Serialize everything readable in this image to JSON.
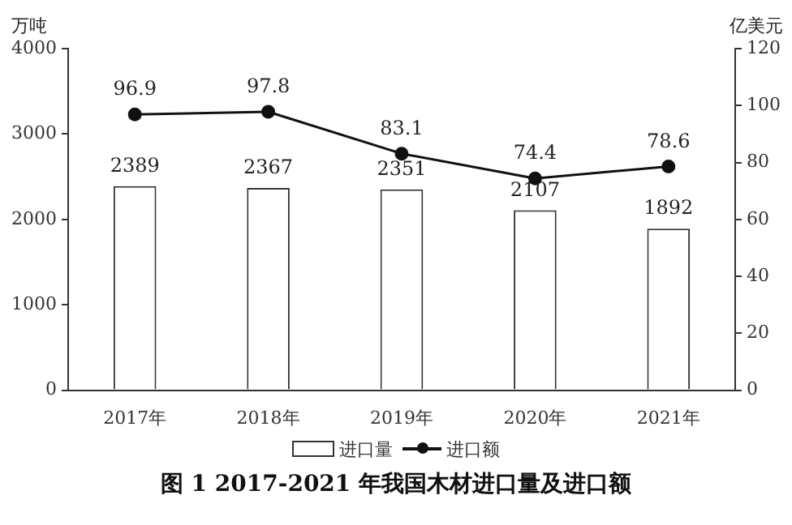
{
  "chart_data": {
    "type": "bar",
    "title": "图 1 2017-2021 年我国木材进口量及进口额",
    "ylabel": "万吨",
    "y2label": "亿美元",
    "categories": [
      "2017年",
      "2018年",
      "2019年",
      "2020年",
      "2021年"
    ],
    "series": [
      {
        "name": "进口量",
        "color": "#ffffff",
        "values": [
          2389,
          2367,
          2351,
          2107,
          1892
        ]
      },
      {
        "name": "进口额",
        "type": "line",
        "axis": "y2",
        "color": "#111111",
        "values": [
          96.9,
          97.8,
          83.1,
          74.4,
          78.6
        ]
      }
    ],
    "ylim": [
      0,
      4000
    ],
    "yticks": [
      0,
      1000,
      2000,
      3000,
      4000
    ],
    "y2lim": [
      0,
      120
    ],
    "y2ticks": [
      0,
      20,
      40,
      60,
      80,
      100,
      120
    ],
    "data_labels": true,
    "grid": false,
    "legend": "bottom",
    "marker": "circle",
    "line_style": "solid"
  }
}
